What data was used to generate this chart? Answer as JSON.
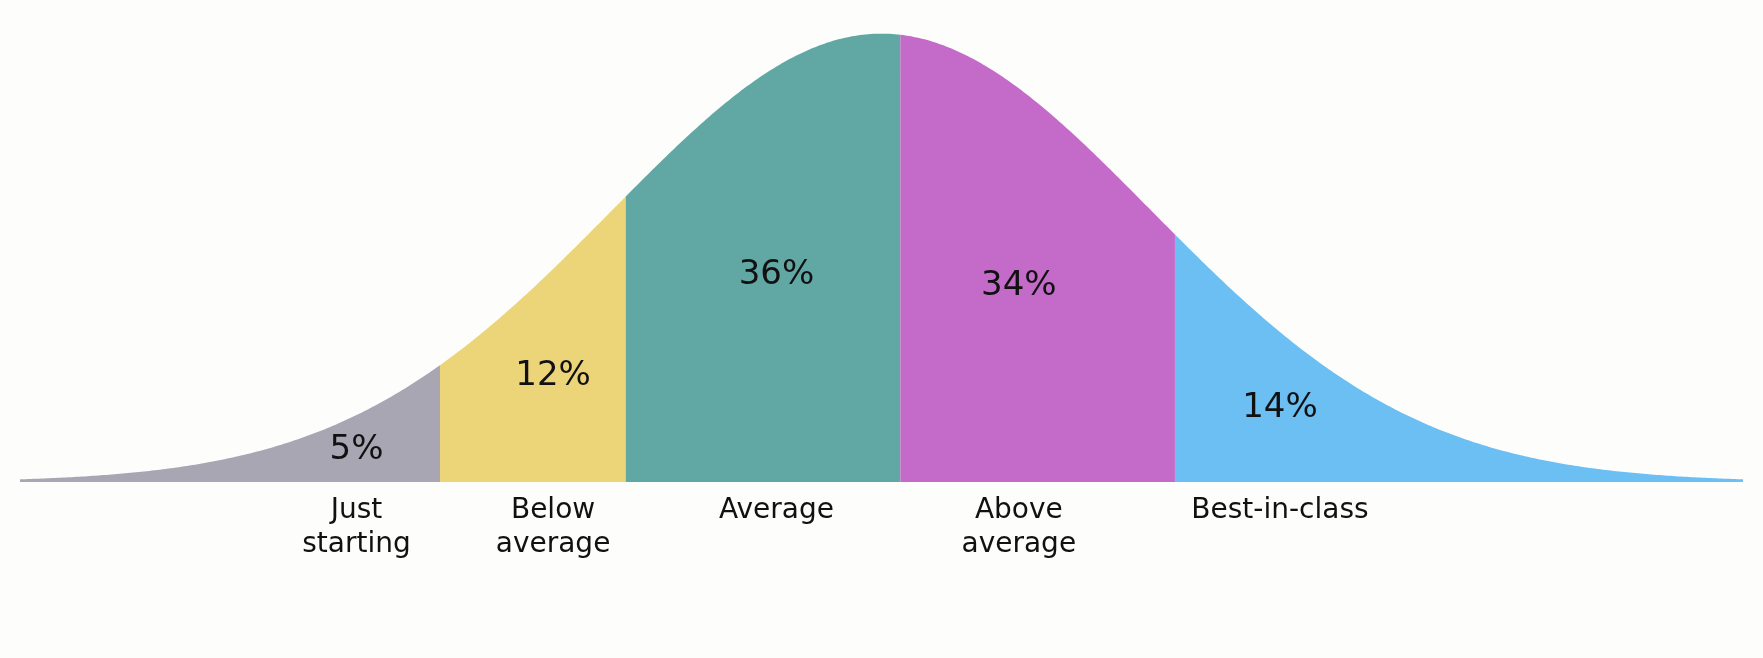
{
  "chart_data": {
    "type": "other",
    "categories": [
      "Just starting",
      "Below average",
      "Average",
      "Above average",
      "Best-in-class"
    ],
    "values": [
      5,
      12,
      36,
      34,
      14
    ],
    "value_labels": [
      "5%",
      "12%",
      "36%",
      "34%",
      "14%"
    ],
    "colors": [
      "#a9a6b3",
      "#ecd479",
      "#61a8a5",
      "#c46bca",
      "#6bbff2"
    ]
  }
}
